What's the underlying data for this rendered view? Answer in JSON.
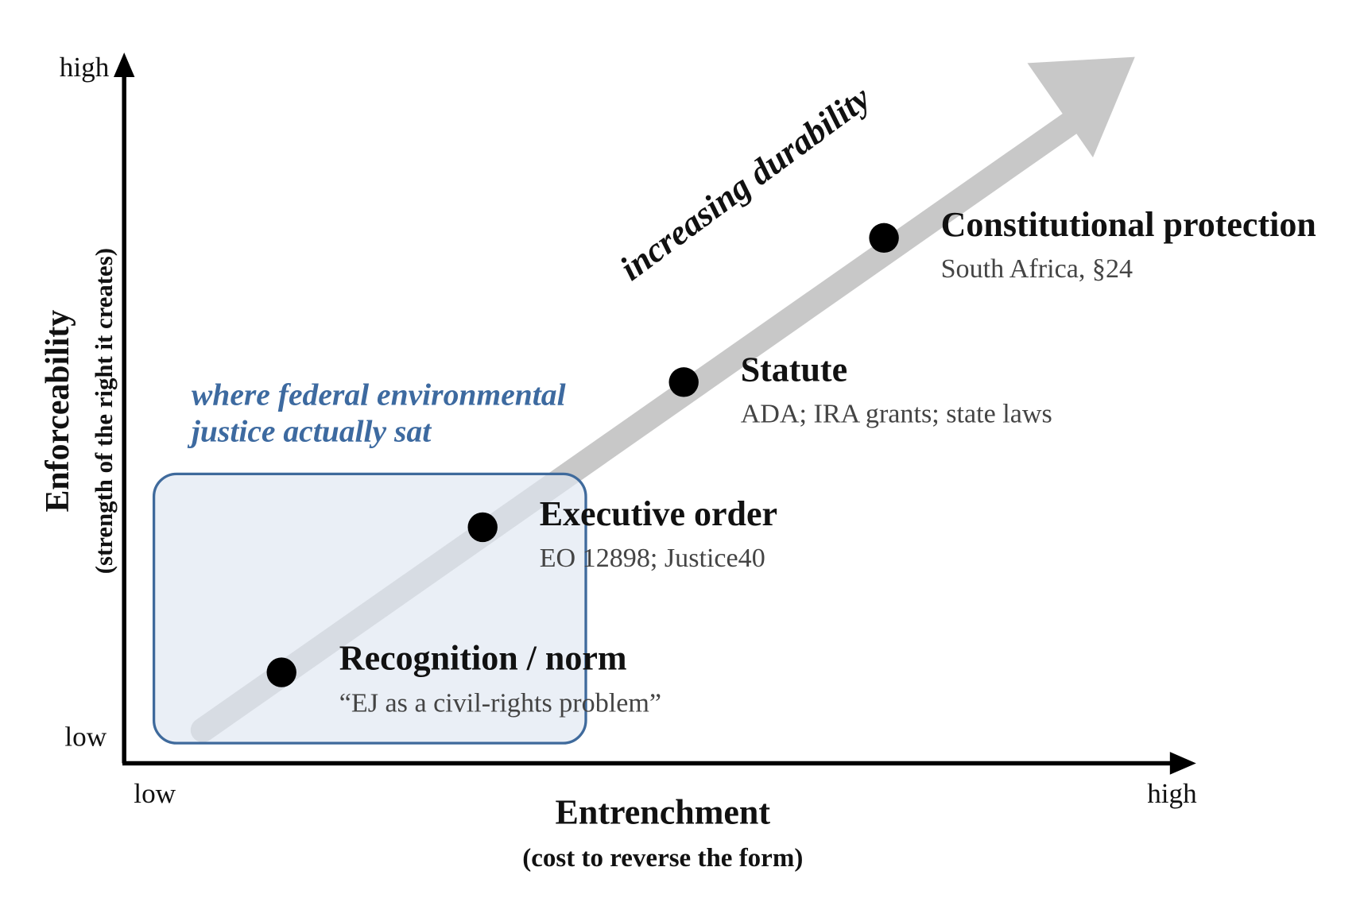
{
  "y_axis": {
    "title": "Enforceability",
    "subtitle": "(strength of the right it creates)",
    "high": "high",
    "low": "low"
  },
  "x_axis": {
    "title": "Entrenchment",
    "subtitle": "(cost to reverse the form)",
    "low": "low",
    "high": "high"
  },
  "trend_label": "increasing durability",
  "annotation": {
    "lines": [
      "where federal environmental",
      "justice actually sat"
    ]
  },
  "nodes": [
    {
      "title": "Recognition / norm",
      "subtitle": "“EJ as a civil-rights problem”"
    },
    {
      "title": "Executive order",
      "subtitle": "EO 12898; Justice40"
    },
    {
      "title": "Statute",
      "subtitle": "ADA; IRA grants; state laws"
    },
    {
      "title": "Constitutional protection",
      "subtitle": "South Africa, §24"
    }
  ]
}
